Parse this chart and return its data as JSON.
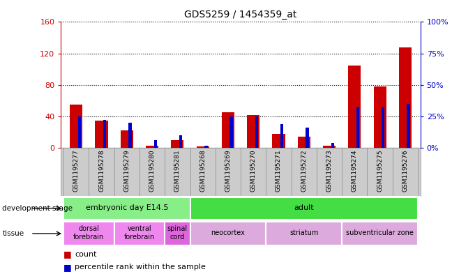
{
  "title": "GDS5259 / 1454359_at",
  "samples": [
    "GSM1195277",
    "GSM1195278",
    "GSM1195279",
    "GSM1195280",
    "GSM1195281",
    "GSM1195268",
    "GSM1195269",
    "GSM1195270",
    "GSM1195271",
    "GSM1195272",
    "GSM1195273",
    "GSM1195274",
    "GSM1195275",
    "GSM1195276"
  ],
  "count": [
    55,
    35,
    22,
    3,
    10,
    2,
    45,
    42,
    18,
    14,
    3,
    105,
    78,
    128
  ],
  "percentile": [
    25,
    22,
    20,
    6,
    10,
    2,
    25,
    25,
    19,
    16,
    4,
    32,
    32,
    35
  ],
  "count_color": "#cc0000",
  "percentile_color": "#0000cc",
  "ylim_left": [
    0,
    160
  ],
  "ylim_right": [
    0,
    100
  ],
  "yticks_left": [
    0,
    40,
    80,
    120,
    160
  ],
  "yticks_right": [
    0,
    25,
    50,
    75,
    100
  ],
  "ytick_labels_left": [
    "0",
    "40",
    "80",
    "120",
    "160"
  ],
  "ytick_labels_right": [
    "0%",
    "25%",
    "50%",
    "75%",
    "100%"
  ],
  "dev_stage_groups": [
    {
      "label": "embryonic day E14.5",
      "start": 0,
      "end": 4,
      "color": "#88ee88"
    },
    {
      "label": "adult",
      "start": 5,
      "end": 13,
      "color": "#44dd44"
    }
  ],
  "tissue_groups": [
    {
      "label": "dorsal\nforebrain",
      "start": 0,
      "end": 1,
      "color": "#ee88ee"
    },
    {
      "label": "ventral\nforebrain",
      "start": 2,
      "end": 3,
      "color": "#ee88ee"
    },
    {
      "label": "spinal\ncord",
      "start": 4,
      "end": 4,
      "color": "#dd66dd"
    },
    {
      "label": "neocortex",
      "start": 5,
      "end": 7,
      "color": "#ddaadd"
    },
    {
      "label": "striatum",
      "start": 8,
      "end": 10,
      "color": "#ddaadd"
    },
    {
      "label": "subventricular zone",
      "start": 11,
      "end": 13,
      "color": "#ddaadd"
    }
  ],
  "bg_color": "#cccccc",
  "legend_count": "count",
  "legend_pct": "percentile rank within the sample"
}
